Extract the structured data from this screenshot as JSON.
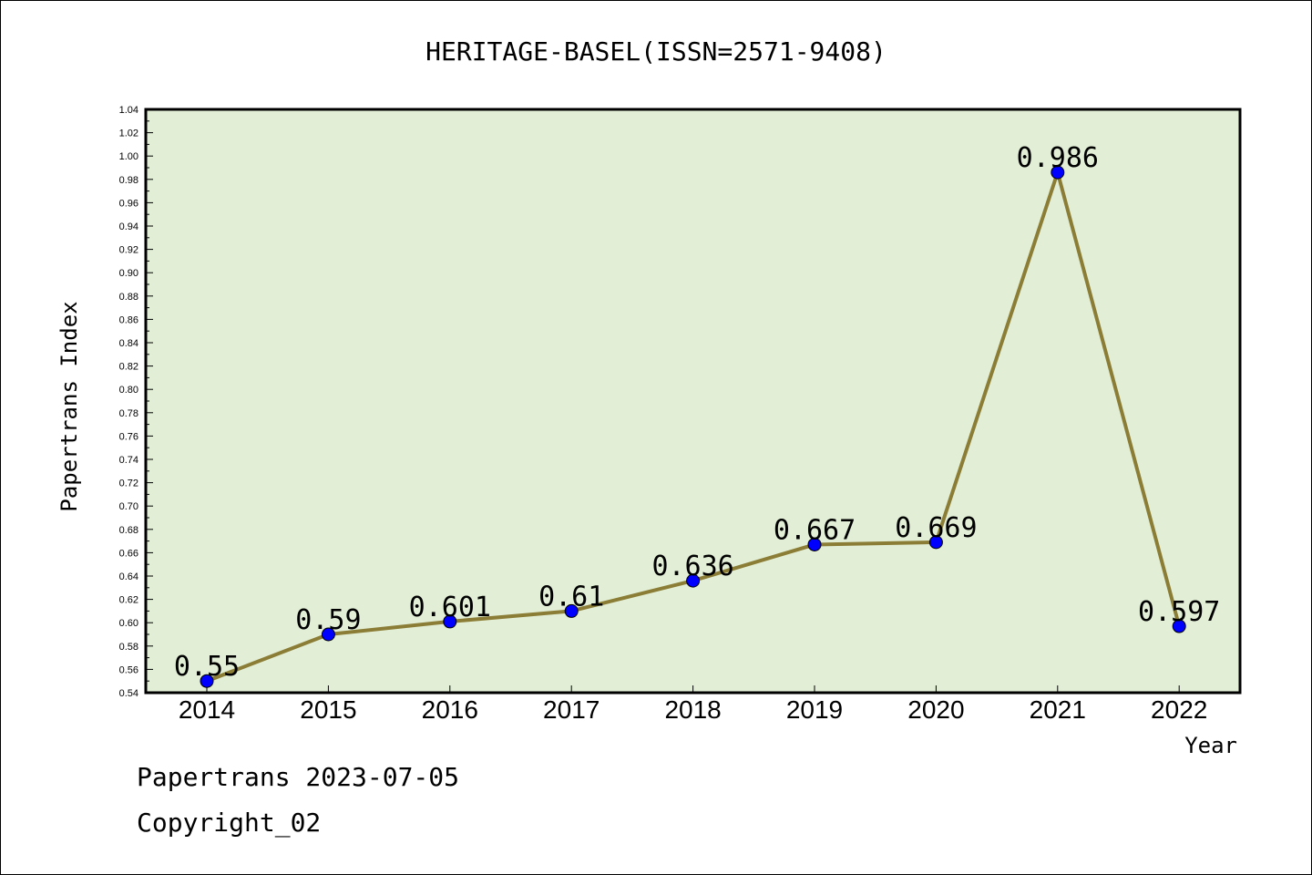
{
  "chart_data": {
    "type": "line",
    "title": "HERITAGE-BASEL(ISSN=2571-9408)",
    "xlabel": "Year",
    "ylabel": "Papertrans Index",
    "categories": [
      "2014",
      "2015",
      "2016",
      "2017",
      "2018",
      "2019",
      "2020",
      "2021",
      "2022"
    ],
    "series": [
      {
        "values": [
          0.55,
          0.59,
          0.601,
          0.61,
          0.636,
          0.667,
          0.669,
          0.986,
          0.597
        ],
        "labels": [
          "0.55",
          "0.59",
          "0.601",
          "0.61",
          "0.636",
          "0.667",
          "0.669",
          "0.986",
          "0.597"
        ]
      }
    ],
    "ylim": [
      0.54,
      1.04
    ],
    "yticks": [
      "0.54",
      "0.56",
      "0.58",
      "0.60",
      "0.62",
      "0.64",
      "0.66",
      "0.68",
      "0.70",
      "0.72",
      "0.74",
      "0.76",
      "0.78",
      "0.80",
      "0.82",
      "0.84",
      "0.86",
      "0.88",
      "0.90",
      "0.92",
      "0.94",
      "0.96",
      "0.98",
      "1.00",
      "1.02",
      "1.04"
    ],
    "grid": false,
    "legend": "none",
    "colors": {
      "plot_background": "#e2efd6",
      "line": "#8b7d35",
      "marker": "#0000ff"
    }
  },
  "footer": {
    "line1": "Papertrans 2023-07-05",
    "line2": "Copyright_02"
  }
}
